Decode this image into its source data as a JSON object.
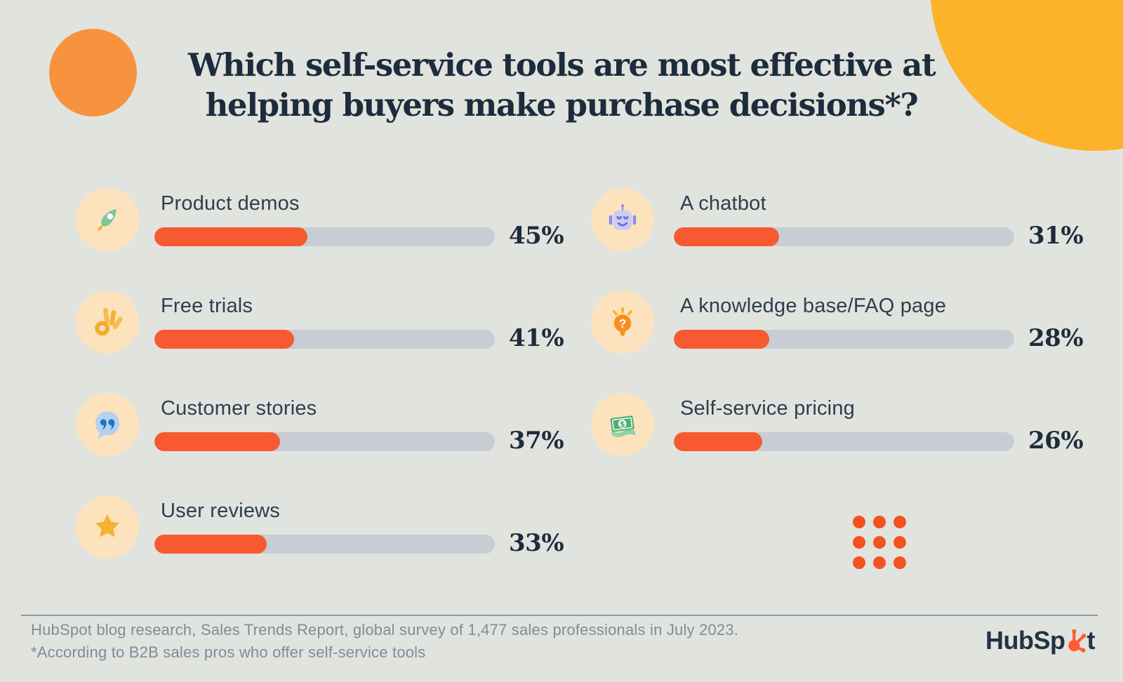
{
  "title": {
    "line1": "Which self-service tools are most effective at",
    "line2": "helping buyers make purchase decisions*?"
  },
  "chart_data": {
    "type": "bar",
    "orientation": "horizontal",
    "unit": "percent",
    "value_axis_range": [
      0,
      100
    ],
    "title": "Which self-service tools are most effective at helping buyers make purchase decisions*?",
    "categories": [
      "Product demos",
      "Free trials",
      "Customer stories",
      "User reviews",
      "A chatbot",
      "A knowledge base/FAQ page",
      "Self-service pricing"
    ],
    "values": [
      45,
      41,
      37,
      33,
      31,
      28,
      26
    ],
    "layout": {
      "left_column_items": [
        0,
        1,
        2,
        3
      ],
      "right_column_items": [
        4,
        5,
        6
      ],
      "grid": false,
      "legend": false
    },
    "items": [
      {
        "label": "Product demos",
        "value": 45,
        "display": "45%",
        "icon": "rocket-icon"
      },
      {
        "label": "Free trials",
        "value": 41,
        "display": "41%",
        "icon": "ok-hand-icon"
      },
      {
        "label": "Customer stories",
        "value": 37,
        "display": "37%",
        "icon": "quote-bubble-icon"
      },
      {
        "label": "User reviews",
        "value": 33,
        "display": "33%",
        "icon": "star-icon"
      },
      {
        "label": "A chatbot",
        "value": 31,
        "display": "31%",
        "icon": "robot-icon"
      },
      {
        "label": "A knowledge base/FAQ page",
        "value": 28,
        "display": "28%",
        "icon": "lightbulb-question-icon"
      },
      {
        "label": "Self-service pricing",
        "value": 26,
        "display": "26%",
        "icon": "money-icon"
      }
    ]
  },
  "footer": {
    "source": "HubSpot blog research, Sales Trends Report, global survey of 1,477 sales professionals in July 2023.",
    "note": "*According to B2B sales pros who offer self-service tools"
  },
  "logo": {
    "name": "HubSpot",
    "text_before": "HubSp",
    "text_after": "t"
  },
  "colors": {
    "background": "#e1e3de",
    "bar_fill": "#f75a31",
    "bar_track": "#c7cdd3",
    "title_text": "#1d2c3c",
    "label_text": "#2f3e4f",
    "percent_text": "#1d2c3c",
    "footer_text": "#7e8c9c",
    "icon_bubble": "#fce3bd",
    "accent_circle_orange": "#f7923e",
    "accent_circle_yellow": "#fcb32a",
    "dots_grid": "#f4521f",
    "logo_text": "#213343",
    "logo_sprocket": "#ff5c35"
  }
}
